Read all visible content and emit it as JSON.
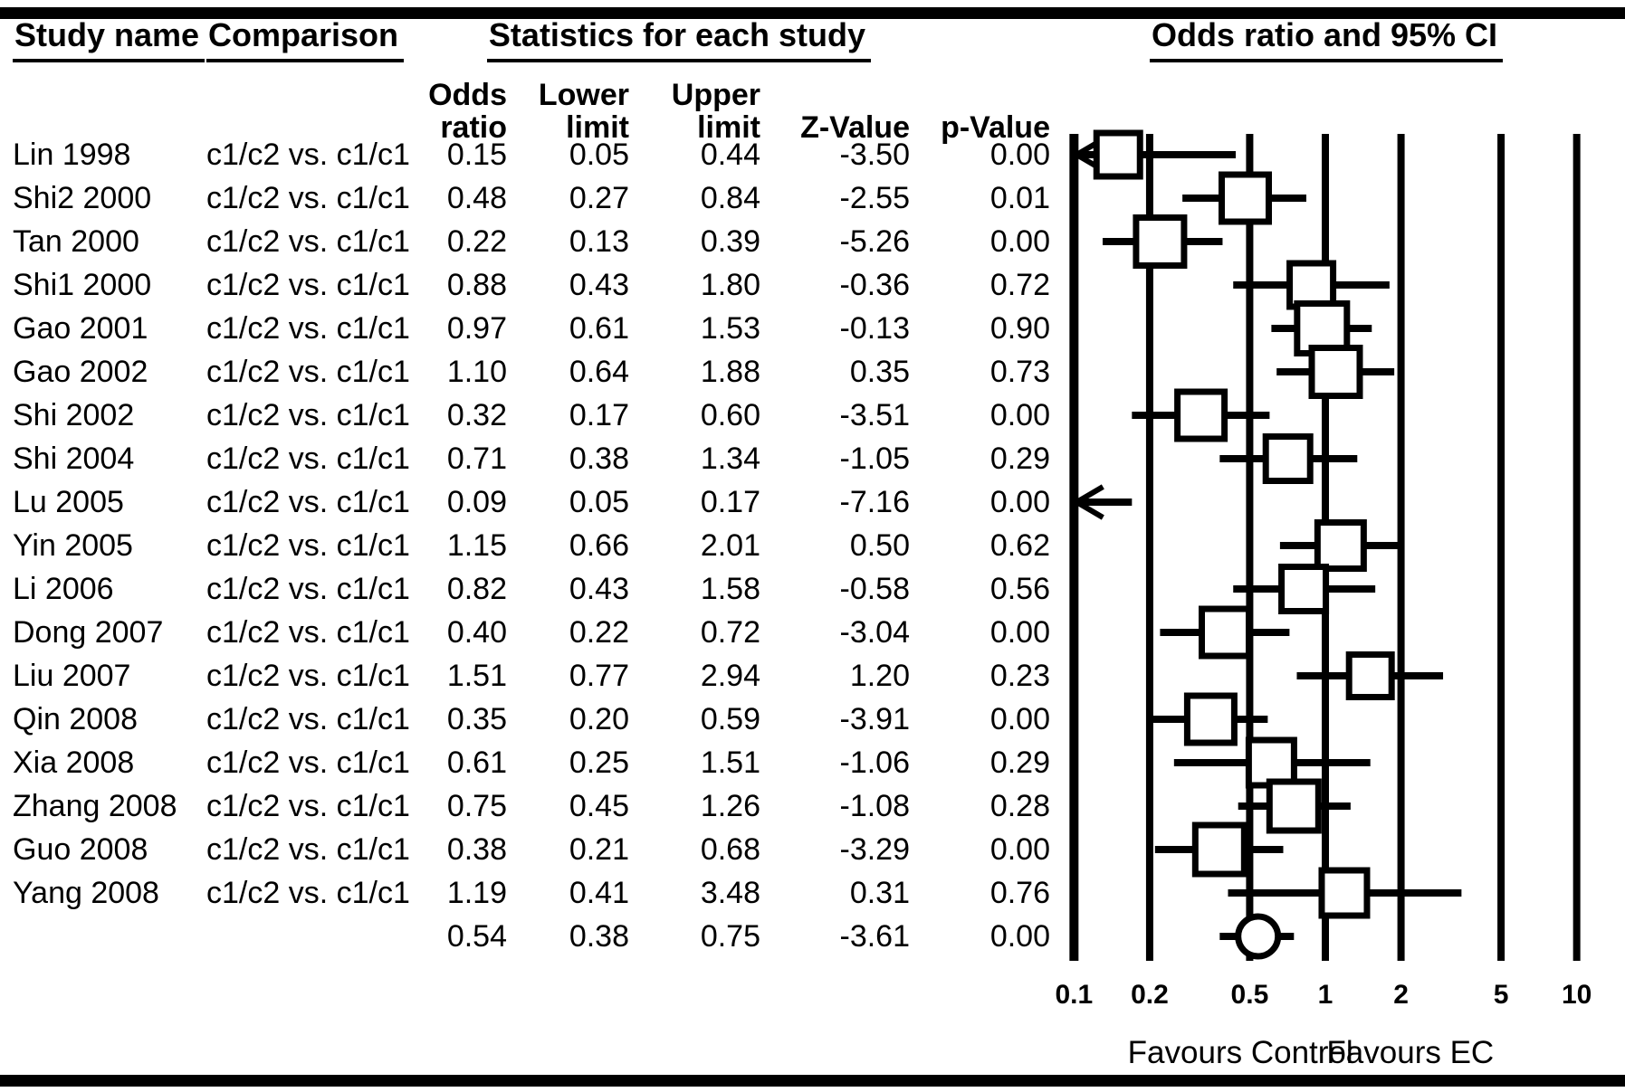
{
  "header": {
    "study_name": "Study name",
    "comparison": "Comparison",
    "statistics": "Statistics for each study",
    "plot_title": "Odds ratio and 95% CI",
    "col_odds_line1": "Odds",
    "col_odds_line2": "ratio",
    "col_lower_line1": "Lower",
    "col_lower_line2": "limit",
    "col_upper_line1": "Upper",
    "col_upper_line2": "limit",
    "col_z": "Z-Value",
    "col_p": "p-Value"
  },
  "chart_data": {
    "type": "forest",
    "x_axis": {
      "scale": "log",
      "ticks": [
        0.1,
        0.2,
        0.5,
        1,
        2,
        5,
        10
      ],
      "tick_labels": [
        "0.1",
        "0.2",
        "0.5",
        "1",
        "2",
        "5",
        "10"
      ],
      "range": [
        0.1,
        10
      ]
    },
    "footer_labels": {
      "left": "Favours Control",
      "right": "Favours EC"
    },
    "marker_color": "#000000",
    "marker_fill": "#ffffff",
    "studies": [
      {
        "name": "Lin 1998",
        "comparison": "c1/c2 vs. c1/c1",
        "or": "0.15",
        "lower": "0.05",
        "upper": "0.44",
        "z": "-3.50",
        "p": "0.00",
        "size": 48
      },
      {
        "name": "Shi2 2000",
        "comparison": "c1/c2 vs. c1/c1",
        "or": "0.48",
        "lower": "0.27",
        "upper": "0.84",
        "z": "-2.55",
        "p": "0.01",
        "size": 52
      },
      {
        "name": "Tan 2000",
        "comparison": "c1/c2 vs. c1/c1",
        "or": "0.22",
        "lower": "0.13",
        "upper": "0.39",
        "z": "-5.26",
        "p": "0.00",
        "size": 53
      },
      {
        "name": "Shi1 2000",
        "comparison": "c1/c2 vs. c1/c1",
        "or": "0.88",
        "lower": "0.43",
        "upper": "1.80",
        "z": "-0.36",
        "p": "0.72",
        "size": 48
      },
      {
        "name": "Gao 2001",
        "comparison": "c1/c2 vs. c1/c1",
        "or": "0.97",
        "lower": "0.61",
        "upper": "1.53",
        "z": "-0.13",
        "p": "0.90",
        "size": 55
      },
      {
        "name": "Gao 2002",
        "comparison": "c1/c2 vs. c1/c1",
        "or": "1.10",
        "lower": "0.64",
        "upper": "1.88",
        "z": "0.35",
        "p": "0.73",
        "size": 53
      },
      {
        "name": "Shi 2002",
        "comparison": "c1/c2 vs. c1/c1",
        "or": "0.32",
        "lower": "0.17",
        "upper": "0.60",
        "z": "-3.51",
        "p": "0.00",
        "size": 52
      },
      {
        "name": "Shi 2004",
        "comparison": "c1/c2 vs. c1/c1",
        "or": "0.71",
        "lower": "0.38",
        "upper": "1.34",
        "z": "-1.05",
        "p": "0.29",
        "size": 49
      },
      {
        "name": "Lu 2005",
        "comparison": "c1/c2 vs. c1/c1",
        "or": "0.09",
        "lower": "0.05",
        "upper": "0.17",
        "z": "-7.16",
        "p": "0.00",
        "size": 0
      },
      {
        "name": "Yin 2005",
        "comparison": "c1/c2 vs. c1/c1",
        "or": "1.15",
        "lower": "0.66",
        "upper": "2.01",
        "z": "0.50",
        "p": "0.62",
        "size": 51
      },
      {
        "name": "Li 2006",
        "comparison": "c1/c2 vs. c1/c1",
        "or": "0.82",
        "lower": "0.43",
        "upper": "1.58",
        "z": "-0.58",
        "p": "0.56",
        "size": 49
      },
      {
        "name": "Dong 2007",
        "comparison": "c1/c2 vs. c1/c1",
        "or": "0.40",
        "lower": "0.22",
        "upper": "0.72",
        "z": "-3.04",
        "p": "0.00",
        "size": 52
      },
      {
        "name": "Liu 2007",
        "comparison": "c1/c2 vs. c1/c1",
        "or": "1.51",
        "lower": "0.77",
        "upper": "2.94",
        "z": "1.20",
        "p": "0.23",
        "size": 47
      },
      {
        "name": "Qin 2008",
        "comparison": "c1/c2 vs. c1/c1",
        "or": "0.35",
        "lower": "0.20",
        "upper": "0.59",
        "z": "-3.91",
        "p": "0.00",
        "size": 52
      },
      {
        "name": "Xia 2008",
        "comparison": "c1/c2 vs. c1/c1",
        "or": "0.61",
        "lower": "0.25",
        "upper": "1.51",
        "z": "-1.06",
        "p": "0.29",
        "size": 50
      },
      {
        "name": "Zhang 2008",
        "comparison": "c1/c2 vs. c1/c1",
        "or": "0.75",
        "lower": "0.45",
        "upper": "1.26",
        "z": "-1.08",
        "p": "0.28",
        "size": 54
      },
      {
        "name": "Guo 2008",
        "comparison": "c1/c2 vs. c1/c1",
        "or": "0.38",
        "lower": "0.21",
        "upper": "0.68",
        "z": "-3.29",
        "p": "0.00",
        "size": 54
      },
      {
        "name": "Yang 2008",
        "comparison": "c1/c2 vs. c1/c1",
        "or": "1.19",
        "lower": "0.41",
        "upper": "3.48",
        "z": "0.31",
        "p": "0.76",
        "size": 50
      }
    ],
    "summary": {
      "or": "0.54",
      "lower": "0.38",
      "upper": "0.75",
      "z": "-3.61",
      "p": "0.00",
      "marker": "circle",
      "radius": 22
    }
  }
}
